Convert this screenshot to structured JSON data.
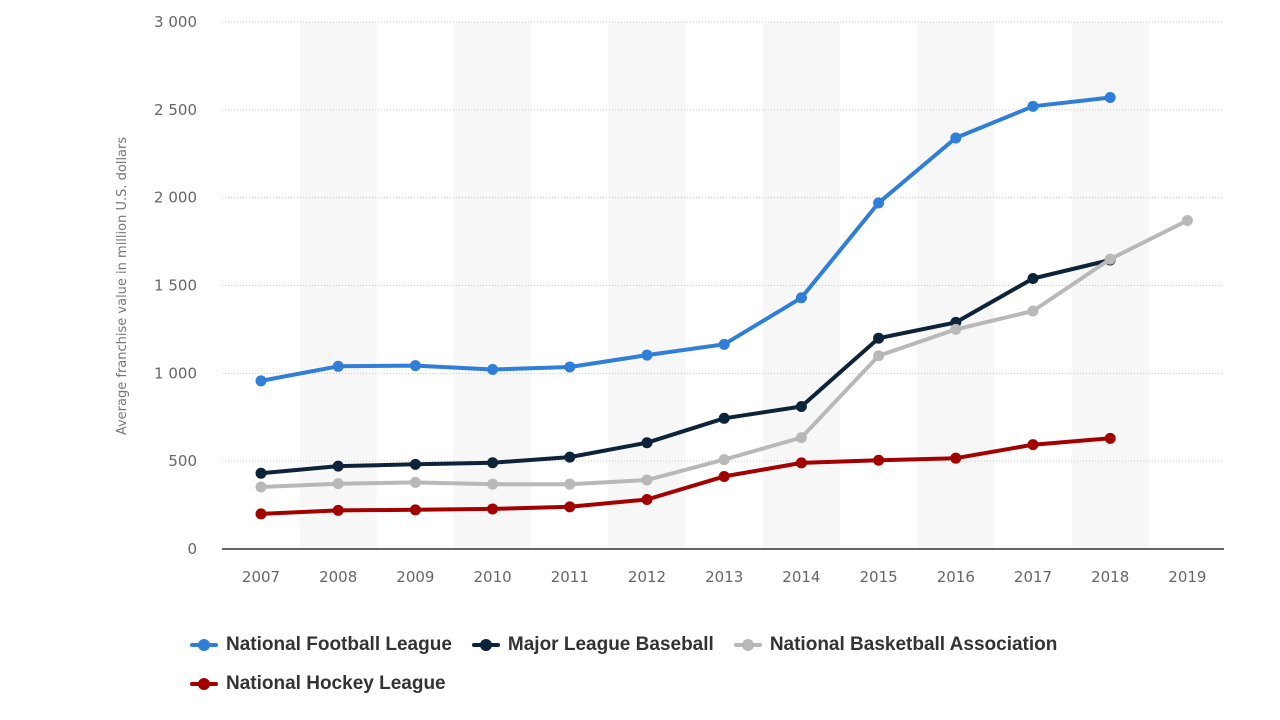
{
  "chart_data": {
    "type": "line",
    "ylabel": "Average franchise value in million U.S. dollars",
    "xlabel": "",
    "categories": [
      "2007",
      "2008",
      "2009",
      "2010",
      "2011",
      "2012",
      "2013",
      "2014",
      "2015",
      "2016",
      "2017",
      "2018",
      "2019"
    ],
    "y_tick_labels": [
      "0",
      "500",
      "1 000",
      "1 500",
      "2 000",
      "2 500",
      "3 000"
    ],
    "y_ticks": [
      0,
      500,
      1000,
      1500,
      2000,
      2500,
      3000
    ],
    "ylim": [
      0,
      3000
    ],
    "grid": "horizontal dotted",
    "legend_position": "bottom",
    "series": [
      {
        "name": "National Football League",
        "color": "#2f7ed8",
        "values": [
          957,
          1040,
          1044,
          1022,
          1036,
          1104,
          1165,
          1430,
          1970,
          2340,
          2520,
          2570,
          null
        ]
      },
      {
        "name": "Major League Baseball",
        "color": "#0d233a",
        "values": [
          431,
          472,
          482,
          491,
          523,
          605,
          744,
          811,
          1200,
          1290,
          1540,
          1645,
          null
        ]
      },
      {
        "name": "National Basketball Association",
        "color": "#b8b8b8",
        "values": [
          353,
          372,
          379,
          369,
          369,
          393,
          509,
          634,
          1100,
          1250,
          1355,
          1650,
          1870
        ]
      },
      {
        "name": "National Hockey League",
        "color": "#a30000",
        "values": [
          200,
          220,
          223,
          228,
          240,
          282,
          413,
          490,
          505,
          517,
          594,
          630,
          null
        ]
      }
    ]
  }
}
